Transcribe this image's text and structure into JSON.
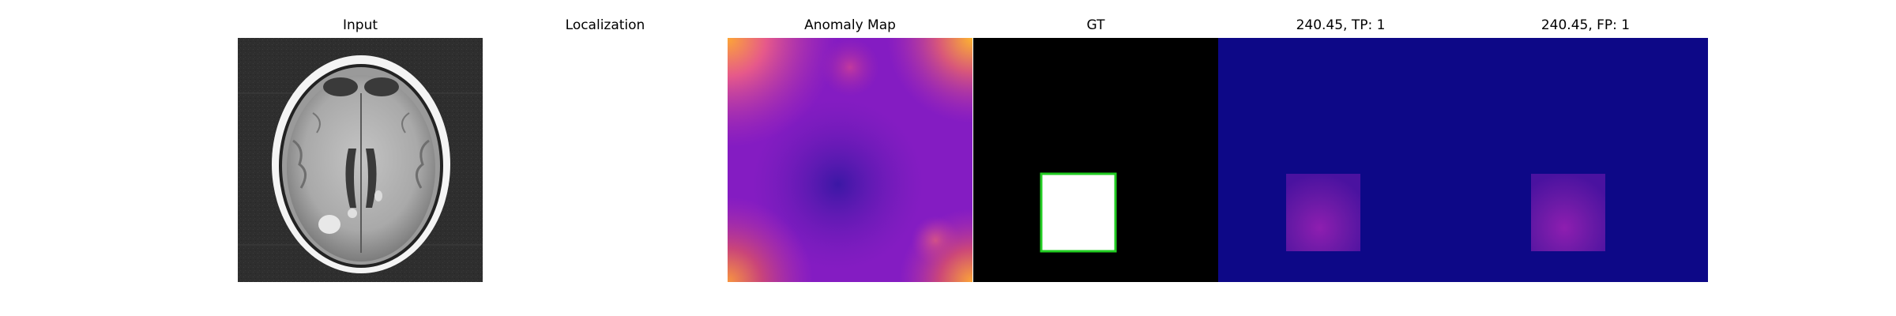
{
  "panels": [
    {
      "title": "Input",
      "content": "brain MRI slice"
    },
    {
      "title": "Localization",
      "content": ""
    },
    {
      "title": "Anomaly Map",
      "content": "heatmap"
    },
    {
      "title": "GT",
      "content": "ground truth mask"
    },
    {
      "title": "240.45, TP: 1",
      "content": "prediction"
    },
    {
      "title": "240.45, FP: 1",
      "content": "prediction"
    }
  ],
  "colors": {
    "background": "#ffffff",
    "mri_background": "#2e2e2e",
    "gt_background": "#000000",
    "gt_box_fill": "#ffffff",
    "gt_box_border": "#22cc22",
    "prediction_background": "#0d0887",
    "heatmap_low": "#2b0fa0",
    "heatmap_mid": "#8a1ec8",
    "heatmap_high": "#fca636"
  }
}
